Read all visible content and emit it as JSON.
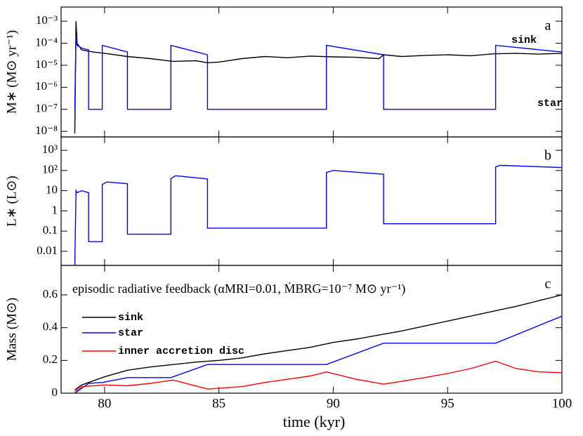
{
  "chart_data": [
    {
      "type": "line",
      "annotation": "a",
      "ylabel": "M∗ (M⊙ yr⁻¹)",
      "yscale": "log",
      "xlim": [
        78.1,
        100
      ],
      "xticks": [
        80,
        85,
        90,
        95,
        100
      ],
      "ylim": [
        5.6e-09,
        0.0044
      ],
      "yticks": [
        {
          "value": 1e-08,
          "label": "10⁻⁸"
        },
        {
          "value": 1e-07,
          "label": "10⁻⁷"
        },
        {
          "value": 1e-06,
          "label": "10⁻⁶"
        },
        {
          "value": 1e-05,
          "label": "10⁻⁵"
        },
        {
          "value": 0.0001,
          "label": "10⁻⁴"
        },
        {
          "value": 0.001,
          "label": "10⁻³"
        }
      ],
      "series": [
        {
          "name": "sink",
          "color": "#000000",
          "x": [
            78.7,
            78.75,
            78.8,
            79.0,
            79.5,
            80,
            81,
            82,
            83,
            84,
            84.5,
            85,
            86,
            87,
            88,
            89,
            90,
            91,
            92,
            92.2,
            93,
            94,
            95,
            96,
            97,
            98,
            99,
            100
          ],
          "values": [
            8e-09,
            0.001,
            0.0001,
            5e-05,
            4e-05,
            3.5e-05,
            2.5e-05,
            2e-05,
            1.5e-05,
            1.6e-05,
            1.3e-05,
            1.4e-05,
            2e-05,
            2.5e-05,
            2.2e-05,
            2.6e-05,
            2.4e-05,
            2.3e-05,
            2e-05,
            3e-05,
            2.5e-05,
            2.8e-05,
            3e-05,
            2.7e-05,
            3.3e-05,
            3.5e-05,
            3.2e-05,
            3.5e-05
          ]
        },
        {
          "name": "star",
          "color": "#0000ff",
          "x": [
            78.7,
            78.75,
            78.8,
            79.0,
            79.3,
            79.3,
            79.9,
            79.9,
            81.0,
            81.0,
            82.9,
            82.9,
            84.5,
            84.5,
            89.7,
            89.7,
            92.2,
            92.2,
            97.1,
            97.1,
            100
          ],
          "values": [
            1e-07,
            0.0002,
            8e-05,
            6e-05,
            5e-05,
            1e-07,
            1e-07,
            8e-05,
            4e-05,
            1e-07,
            1e-07,
            8e-05,
            3e-05,
            1e-07,
            1e-07,
            8e-05,
            3e-05,
            1e-07,
            1e-07,
            8e-05,
            4e-05
          ]
        }
      ]
    },
    {
      "type": "line",
      "annotation": "b",
      "ylabel": "L∗ (L⊙)",
      "yscale": "log",
      "xlim": [
        78.1,
        100
      ],
      "xticks": [
        80,
        85,
        90,
        95,
        100
      ],
      "ylim": [
        0.002,
        4600
      ],
      "yticks": [
        0.01,
        0.1,
        1,
        10,
        {
          "value": 100,
          "label": "10²"
        },
        {
          "value": 1000,
          "label": "10³"
        }
      ],
      "series": [
        {
          "name": "star",
          "color": "#0000ff",
          "x": [
            78.7,
            78.75,
            78.8,
            79.0,
            79.3,
            79.3,
            79.9,
            79.9,
            80.1,
            81.0,
            81.0,
            82.9,
            82.9,
            83.1,
            84.5,
            84.5,
            89.7,
            89.7,
            90,
            92.2,
            92.2,
            97.1,
            97.1,
            97.3,
            100
          ],
          "values": [
            0.002,
            10,
            8,
            10,
            8,
            0.03,
            0.03,
            20,
            27,
            22,
            0.07,
            0.07,
            40,
            55,
            38,
            0.14,
            0.14,
            80,
            100,
            65,
            0.23,
            0.23,
            150,
            180,
            140
          ]
        }
      ]
    },
    {
      "type": "line",
      "annotation": "c",
      "ylabel": "Mass (M⊙)",
      "xlabel": "time (kyr)",
      "subtitle": "episodic radiative feedback (αMRI=0.01, ṀBRG=10⁻⁷ M⊙ yr⁻¹)",
      "xlim": [
        78.1,
        100
      ],
      "xticks": [
        80,
        85,
        90,
        95,
        100
      ],
      "ylim": [
        0,
        0.78
      ],
      "yticks": [
        0,
        0.2,
        0.4,
        0.6
      ],
      "series": [
        {
          "name": "sink",
          "color": "#000000",
          "x": [
            78.7,
            79,
            80,
            81,
            82,
            83,
            84,
            85,
            86,
            87,
            88,
            89,
            90,
            91,
            92,
            93,
            94,
            95,
            96,
            97,
            98,
            99,
            100
          ],
          "values": [
            0.02,
            0.05,
            0.1,
            0.14,
            0.16,
            0.175,
            0.19,
            0.2,
            0.215,
            0.24,
            0.26,
            0.28,
            0.31,
            0.33,
            0.355,
            0.38,
            0.41,
            0.44,
            0.47,
            0.5,
            0.53,
            0.565,
            0.6
          ]
        },
        {
          "name": "star",
          "color": "#0000ff",
          "x": [
            78.7,
            79.3,
            79.9,
            81.0,
            82.9,
            84.5,
            89.7,
            92.2,
            97.1,
            100
          ],
          "values": [
            0,
            0.06,
            0.065,
            0.095,
            0.095,
            0.175,
            0.175,
            0.305,
            0.305,
            0.47
          ]
        },
        {
          "name": "inner accretion disc",
          "color": "#ff0000",
          "x": [
            78.7,
            79,
            80,
            81,
            82,
            83,
            84.5,
            86,
            87,
            88,
            89,
            89.7,
            91,
            92.2,
            94,
            95,
            96,
            97.1,
            98,
            99,
            100
          ],
          "values": [
            0.01,
            0.04,
            0.05,
            0.045,
            0.06,
            0.08,
            0.025,
            0.04,
            0.065,
            0.085,
            0.105,
            0.13,
            0.085,
            0.055,
            0.095,
            0.12,
            0.15,
            0.195,
            0.15,
            0.13,
            0.125
          ]
        }
      ]
    }
  ]
}
